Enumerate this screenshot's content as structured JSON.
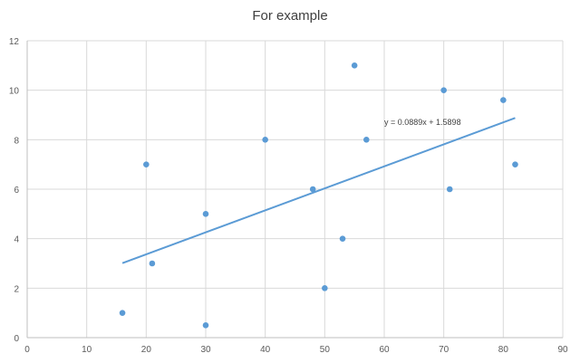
{
  "chart_data": {
    "type": "scatter",
    "title": "For example",
    "xlabel": "",
    "ylabel": "",
    "xlim": [
      0,
      90
    ],
    "ylim": [
      0,
      12
    ],
    "x_ticks": [
      0,
      10,
      20,
      30,
      40,
      50,
      60,
      70,
      80,
      90
    ],
    "y_ticks": [
      0,
      2,
      4,
      6,
      8,
      10,
      12
    ],
    "grid": true,
    "legend": "none",
    "series": [
      {
        "color": "#5b9bd5",
        "points": [
          {
            "x": 16,
            "y": 1
          },
          {
            "x": 20,
            "y": 7
          },
          {
            "x": 21,
            "y": 3
          },
          {
            "x": 30,
            "y": 5
          },
          {
            "x": 30,
            "y": 0.5
          },
          {
            "x": 40,
            "y": 8
          },
          {
            "x": 48,
            "y": 6
          },
          {
            "x": 50,
            "y": 2
          },
          {
            "x": 53,
            "y": 4
          },
          {
            "x": 55,
            "y": 11
          },
          {
            "x": 57,
            "y": 8
          },
          {
            "x": 70,
            "y": 10
          },
          {
            "x": 71,
            "y": 6
          },
          {
            "x": 80,
            "y": 9.6
          },
          {
            "x": 82,
            "y": 7
          }
        ]
      }
    ],
    "trendline": {
      "type": "linear",
      "slope": 0.0889,
      "intercept": 1.5898,
      "x_range": [
        16,
        82
      ],
      "color": "#5b9bd5",
      "equation_label": "y = 0.0889x + 1.5898",
      "label_x": 60,
      "label_y": 8.6
    },
    "colors": {
      "grid": "#d9d9d9",
      "axis": "#bfbfbf"
    }
  }
}
